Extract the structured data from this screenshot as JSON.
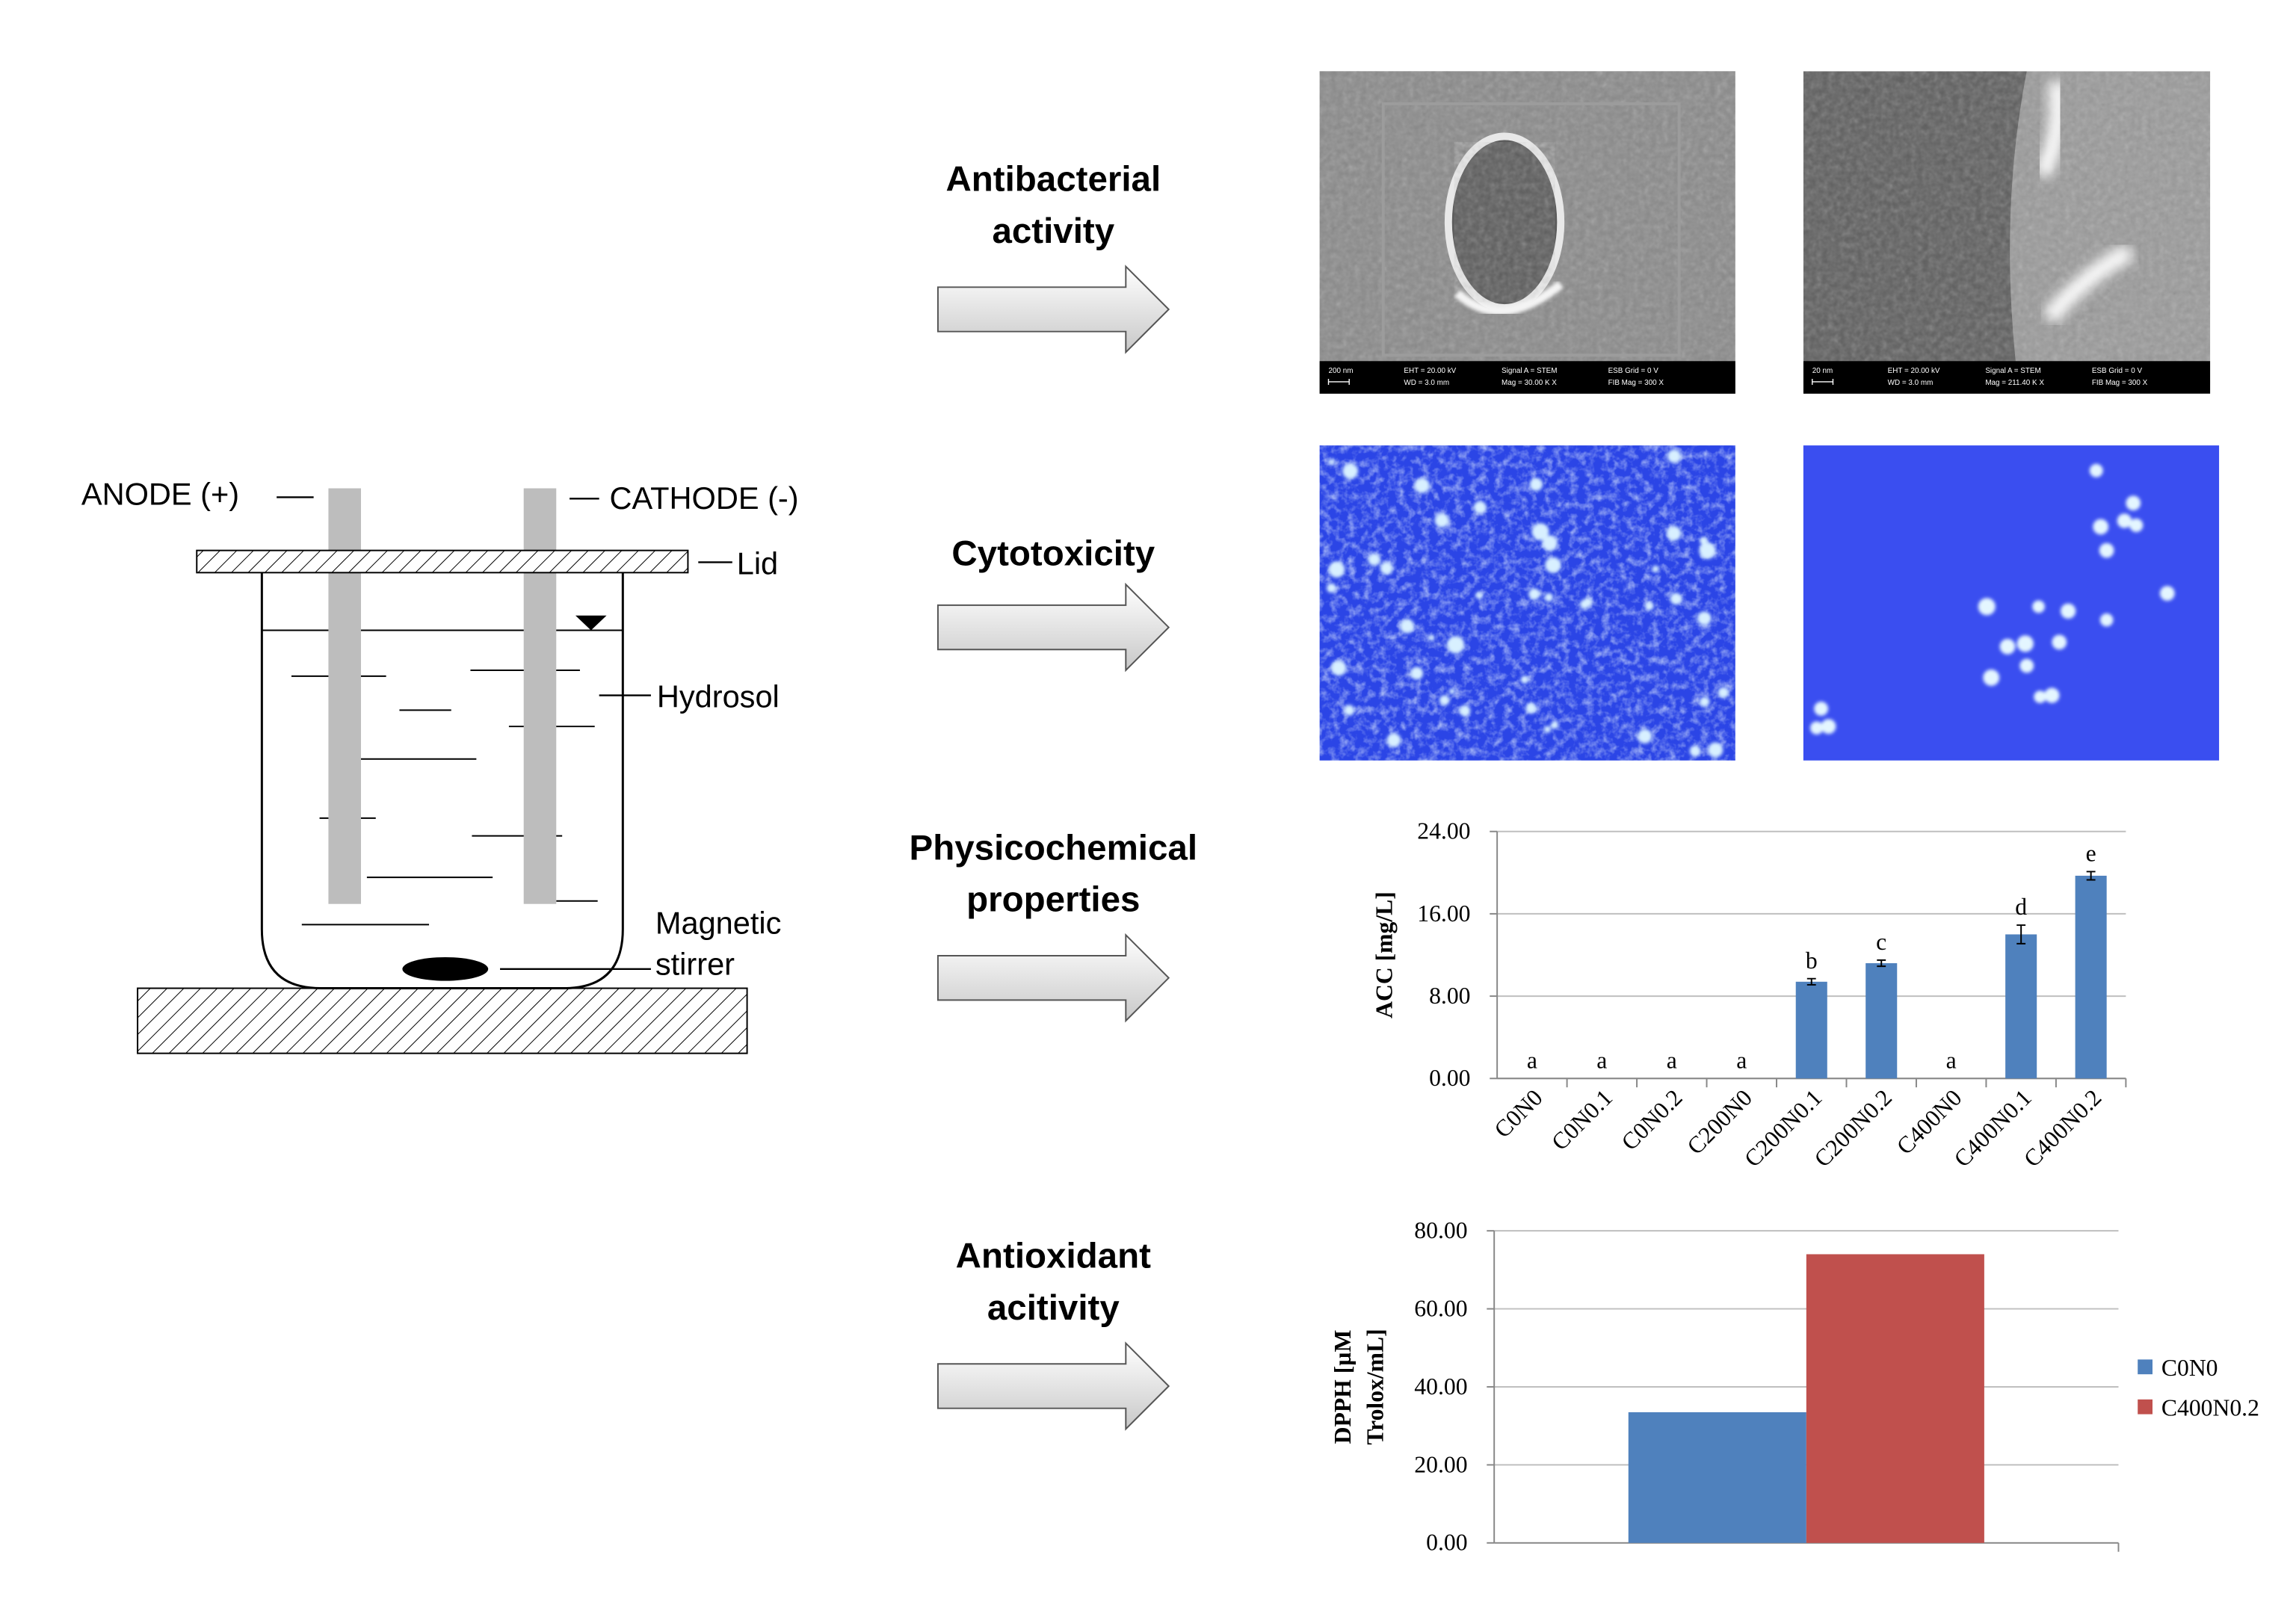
{
  "diagram": {
    "anode": "ANODE (+)",
    "cathode": "CATHODE (-)",
    "lid": "Lid",
    "hydrosol": "Hydrosol",
    "stirrer": [
      "Magnetic",
      "stirrer"
    ]
  },
  "sections": [
    {
      "lines": [
        "Antibacterial",
        "activity"
      ]
    },
    {
      "lines": [
        "Cytotoxicity"
      ]
    },
    {
      "lines": [
        "Physicochemical",
        "properties"
      ]
    },
    {
      "lines": [
        "Antioxidant",
        "acitivity"
      ]
    }
  ],
  "sem_images": [
    {
      "scale_bar": "200 nm",
      "info": [
        [
          "EHT = 20.00 kV",
          "WD = 3.0 mm"
        ],
        [
          "Signal A = STEM",
          "Mag = 30.00 K X"
        ],
        [
          "ESB Grid = 0 V",
          "FIB Mag = 300 X"
        ]
      ]
    },
    {
      "scale_bar": "20 nm",
      "info": [
        [
          "EHT = 20.00 kV",
          "WD = 3.0 mm"
        ],
        [
          "Signal A = STEM",
          "Mag = 211.40 K X"
        ],
        [
          "ESB Grid = 0 V",
          "FIB Mag = 300 X"
        ]
      ]
    }
  ],
  "chart_data": [
    {
      "type": "bar",
      "y_label": "ACC [mg/L]",
      "categories": [
        "C0N0",
        "C0N0.1",
        "C0N0.2",
        "C200N0",
        "C200N0.1",
        "C200N0.2",
        "C400N0",
        "C400N0.1",
        "C400N0.2"
      ],
      "values": [
        0,
        0,
        0,
        0,
        9.4,
        11.2,
        0,
        14.0,
        19.7
      ],
      "errors": [
        0,
        0,
        0,
        0,
        0.3,
        0.3,
        0,
        0.9,
        0.4
      ],
      "annotations": [
        "a",
        "a",
        "a",
        "a",
        "b",
        "c",
        "a",
        "d",
        "e"
      ],
      "color": "#4f81bd",
      "ylim": [
        0,
        24
      ],
      "yticks": [
        {
          "value": 0,
          "label": "0.00"
        },
        {
          "value": 8,
          "label": "8.00"
        },
        {
          "value": 16,
          "label": "16.00"
        },
        {
          "value": 24,
          "label": "24.00"
        }
      ],
      "grid": true
    },
    {
      "type": "bar",
      "y_label": [
        "DPPH [µM",
        "Trolox/mL]"
      ],
      "categories": [
        null
      ],
      "series": [
        {
          "name": "C0N0",
          "color": "#4f81bd",
          "values": [
            33.5
          ]
        },
        {
          "name": "C400N0.2",
          "color": "#c0504d",
          "values": [
            74
          ]
        }
      ],
      "ylim": [
        0,
        80
      ],
      "yticks": [
        {
          "value": 0,
          "label": "0.00"
        },
        {
          "value": 20,
          "label": "20.00"
        },
        {
          "value": 40,
          "label": "40.00"
        },
        {
          "value": 60,
          "label": "60.00"
        },
        {
          "value": 80,
          "label": "80.00"
        }
      ],
      "grid": true,
      "legend": "right"
    }
  ]
}
